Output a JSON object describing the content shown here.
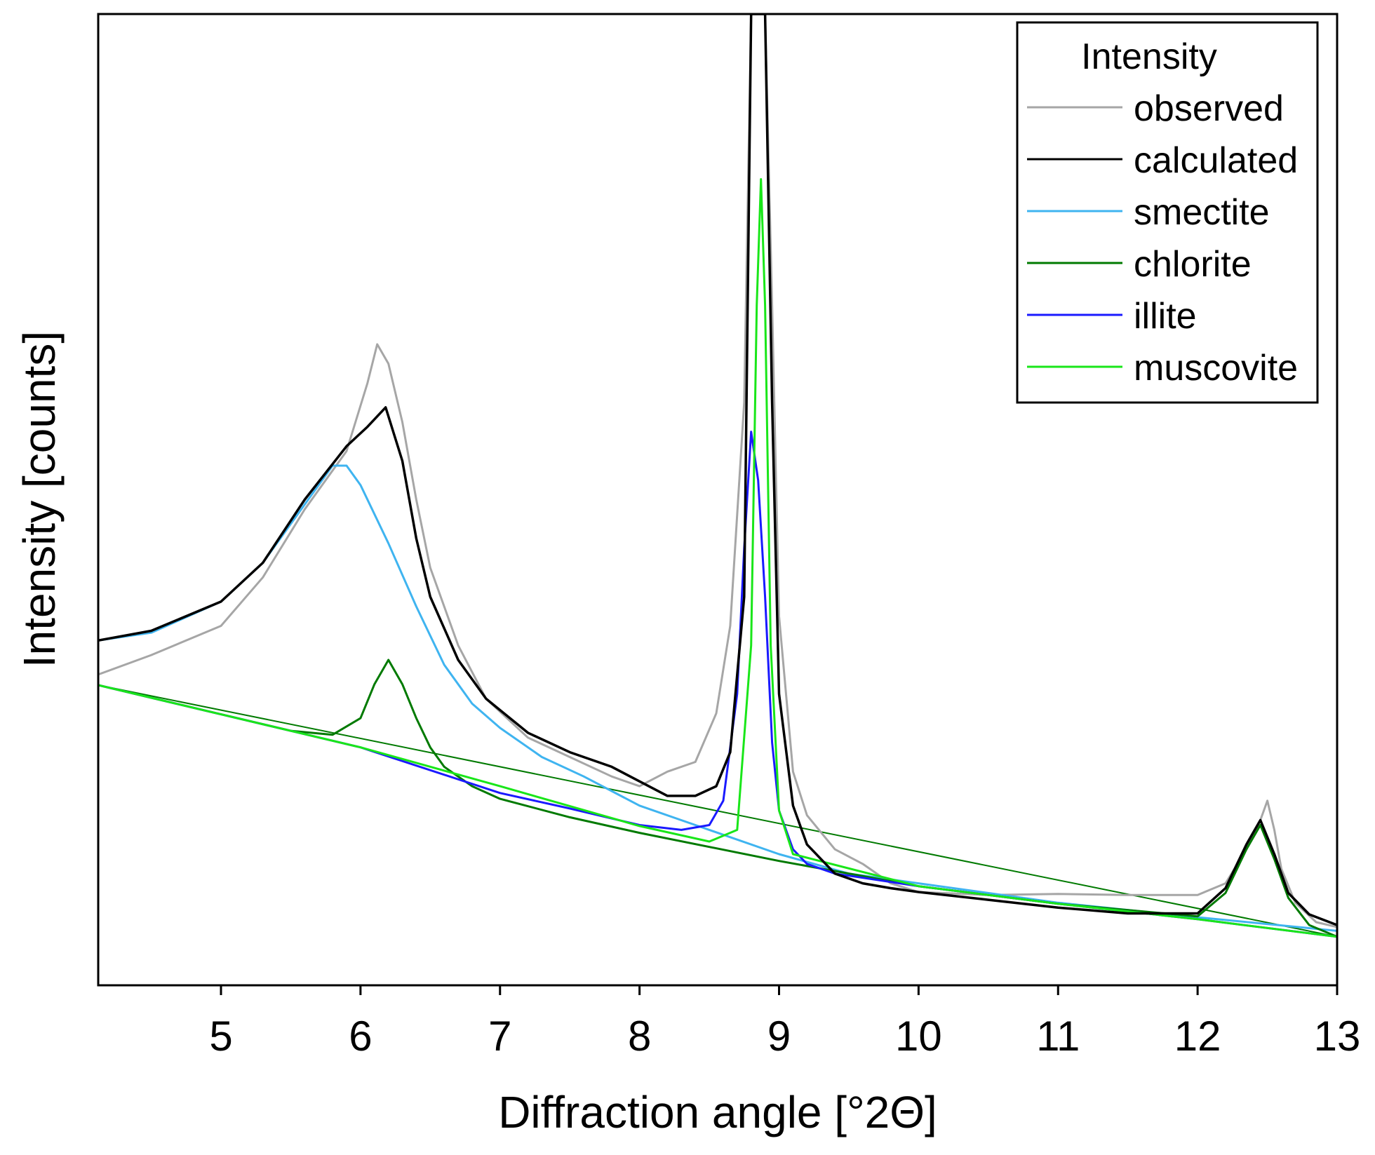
{
  "chart_data": {
    "type": "line",
    "xlabel": "Diffraction angle [°2Θ]",
    "ylabel": "Intensity [counts]",
    "xlim": [
      4.12,
      13.0
    ],
    "ylim": [
      0,
      100
    ],
    "xticks": [
      "5",
      "6",
      "7",
      "8",
      "9",
      "10",
      "11",
      "12",
      "13"
    ],
    "yticks_shown": false,
    "grid": false,
    "legend": {
      "title": "Intensity",
      "placement": "top-right"
    },
    "background_line": {
      "y_at_xmin": 30.9,
      "y_at_xmax": 5.0
    },
    "series": [
      {
        "name": "observed",
        "color": "#a6a6a6",
        "x": [
          4.12,
          4.5,
          5.0,
          5.3,
          5.6,
          5.9,
          6.05,
          6.12,
          6.2,
          6.3,
          6.4,
          6.5,
          6.7,
          6.9,
          7.2,
          7.5,
          7.8,
          8.0,
          8.2,
          8.4,
          8.55,
          8.65,
          8.75,
          8.8,
          8.85,
          8.9,
          8.95,
          9.0,
          9.1,
          9.2,
          9.4,
          9.6,
          9.8,
          10.0,
          10.5,
          11.0,
          11.5,
          12.0,
          12.2,
          12.35,
          12.45,
          12.5,
          12.55,
          12.6,
          12.7,
          12.85,
          13.0
        ],
        "values": [
          32,
          34,
          37,
          42,
          49,
          55,
          62,
          66,
          64,
          58,
          50,
          43,
          35,
          29.5,
          25.5,
          23.5,
          21.5,
          20.5,
          22,
          23,
          28,
          37,
          60,
          100,
          100,
          100,
          70,
          38,
          22,
          17.5,
          14,
          12.5,
          10.5,
          9.6,
          9.3,
          9.4,
          9.3,
          9.3,
          10.5,
          14,
          17,
          19,
          16,
          12,
          8.5,
          6.5,
          6.0
        ]
      },
      {
        "name": "calculated",
        "color": "#000000",
        "x": [
          4.12,
          4.5,
          5.0,
          5.3,
          5.6,
          5.9,
          6.05,
          6.18,
          6.3,
          6.4,
          6.5,
          6.7,
          6.9,
          7.2,
          7.5,
          7.8,
          8.0,
          8.2,
          8.4,
          8.55,
          8.65,
          8.75,
          8.8,
          8.85,
          8.9,
          8.95,
          9.0,
          9.1,
          9.2,
          9.4,
          9.6,
          9.8,
          10.0,
          10.5,
          11.0,
          11.5,
          12.0,
          12.2,
          12.35,
          12.45,
          12.55,
          12.65,
          12.8,
          13.0
        ],
        "values": [
          35.5,
          36.5,
          39.5,
          43.5,
          50,
          55.5,
          57.5,
          59.5,
          54,
          46,
          40,
          33.5,
          29.5,
          26,
          24,
          22.5,
          21,
          19.5,
          19.5,
          20.5,
          24,
          40,
          100,
          100,
          100,
          60,
          30,
          18.5,
          14.5,
          11.5,
          10.5,
          10,
          9.6,
          8.8,
          8.0,
          7.4,
          7.4,
          10,
          14.5,
          17,
          13.5,
          9.5,
          7.3,
          6.2
        ]
      },
      {
        "name": "smectite",
        "color": "#3fb4f0",
        "x": [
          4.12,
          4.5,
          5.0,
          5.3,
          5.6,
          5.8,
          5.9,
          6.0,
          6.2,
          6.4,
          6.6,
          6.8,
          7.0,
          7.3,
          7.6,
          8.0,
          8.4,
          9.0,
          9.5,
          10.0,
          11.0,
          12.0,
          13.0
        ],
        "values": [
          35.5,
          36.3,
          39.5,
          43.5,
          49.5,
          53.5,
          53.5,
          51.5,
          45.5,
          39,
          33,
          29,
          26.5,
          23.5,
          21.5,
          18.5,
          16.5,
          13.5,
          11.5,
          10.5,
          8.5,
          7.0,
          5.6
        ]
      },
      {
        "name": "chlorite",
        "color": "#007a00",
        "x": [
          4.12,
          4.5,
          5.0,
          5.5,
          5.8,
          6.0,
          6.1,
          6.2,
          6.3,
          6.4,
          6.5,
          6.6,
          6.8,
          7.0,
          7.5,
          8.0,
          9.0,
          10.0,
          11.0,
          12.0,
          12.2,
          12.35,
          12.45,
          12.55,
          12.65,
          12.8,
          13.0
        ],
        "values": [
          30.9,
          29.6,
          27.9,
          26.2,
          25.8,
          27.5,
          31,
          33.5,
          31,
          27.5,
          24.5,
          22.5,
          20.5,
          19.2,
          17.3,
          15.7,
          12.8,
          10.2,
          8.4,
          7.1,
          9.5,
          14,
          16.5,
          13,
          9,
          6.2,
          5.0
        ]
      },
      {
        "name": "illite",
        "color": "#1a1aff",
        "x": [
          4.12,
          5.0,
          6.0,
          7.0,
          7.5,
          8.0,
          8.3,
          8.5,
          8.6,
          8.7,
          8.75,
          8.8,
          8.85,
          8.9,
          8.95,
          9.0,
          9.1,
          9.2,
          9.4,
          10.0,
          11.0,
          12.0,
          13.0
        ],
        "values": [
          30.9,
          27.9,
          24.5,
          19.8,
          18.2,
          16.5,
          16.0,
          16.5,
          19,
          30,
          45,
          57,
          52,
          40,
          25,
          18,
          14,
          12.5,
          11.5,
          10.2,
          8.4,
          6.8,
          5.0
        ]
      },
      {
        "name": "muscovite",
        "color": "#19e619",
        "x": [
          4.12,
          5.0,
          6.0,
          7.0,
          8.0,
          8.5,
          8.7,
          8.8,
          8.84,
          8.87,
          8.9,
          8.94,
          9.0,
          9.1,
          10.0,
          11.0,
          12.0,
          13.0
        ],
        "values": [
          30.9,
          27.9,
          24.5,
          20.5,
          16.4,
          14.8,
          16,
          35,
          70,
          83,
          70,
          35,
          18,
          13.5,
          10.2,
          8.4,
          6.8,
          5.0
        ]
      }
    ]
  }
}
